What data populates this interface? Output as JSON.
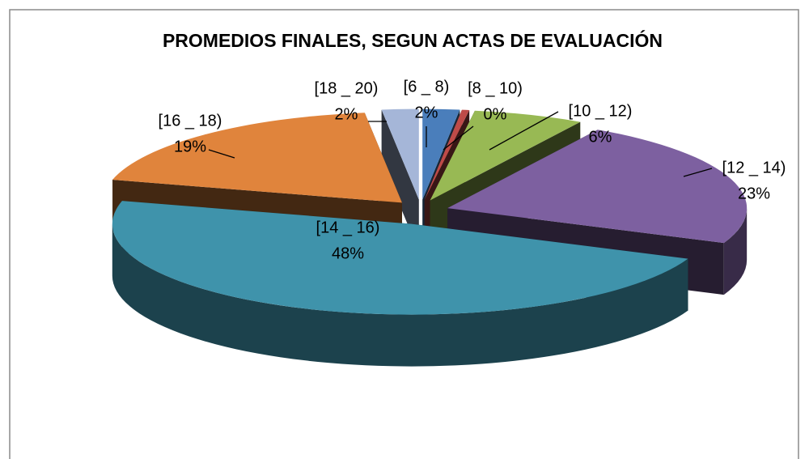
{
  "chart_data": {
    "type": "pie3d",
    "title": "PROMEDIOS FINALES, SEGUN ACTAS DE EVALUACIÓN",
    "categories": [
      "[6 _ 8)",
      "[8 _ 10)",
      "[10 _ 12)",
      "[12 _ 14)",
      "[14 _ 16)",
      "[16 _ 18)",
      "[18 _ 20)"
    ],
    "values": [
      2,
      0.4,
      6,
      23,
      48,
      19,
      2
    ],
    "value_labels": [
      "2%",
      "0%",
      "6%",
      "23%",
      "48%",
      "19%",
      "2%"
    ],
    "colors": [
      "#4a7ebb",
      "#be4b48",
      "#98b954",
      "#7d60a0",
      "#3f93ab",
      "#e0843c",
      "#a5b6d8"
    ]
  }
}
